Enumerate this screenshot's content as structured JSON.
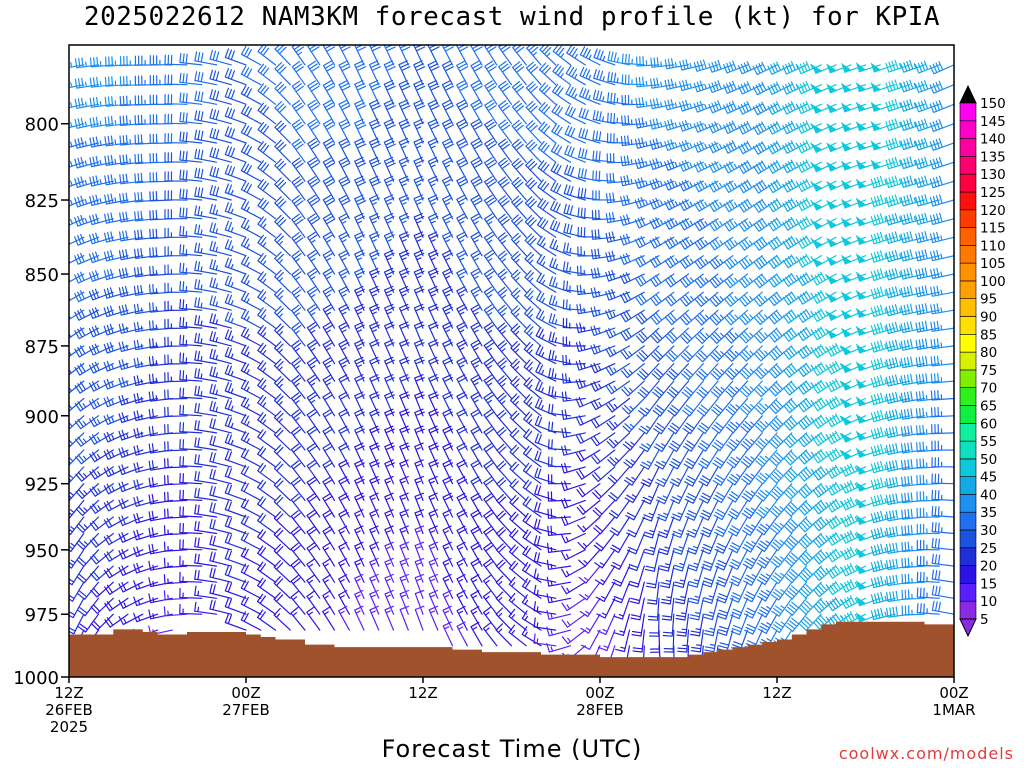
{
  "chart_data": {
    "type": "wind-barb-profile",
    "title": "2025022612 NAM3KM forecast wind profile (kt) for KPIA",
    "xlabel": "Forecast Time (UTC)",
    "ylabel": "",
    "credit": "coolwx.com/models",
    "y_axis": {
      "unit": "hPa",
      "scale": "log",
      "range": [
        1000,
        775
      ],
      "ticks": [
        800,
        825,
        850,
        875,
        900,
        925,
        950,
        975,
        1000
      ]
    },
    "x_axis": {
      "unit": "forecast hour",
      "range": [
        0,
        60
      ],
      "ticks": [
        {
          "hour": 0,
          "lines": [
            "12Z",
            "26FEB",
            "2025"
          ]
        },
        {
          "hour": 12,
          "lines": [
            "00Z",
            "27FEB"
          ]
        },
        {
          "hour": 24,
          "lines": [
            "12Z"
          ]
        },
        {
          "hour": 36,
          "lines": [
            "00Z",
            "28FEB"
          ]
        },
        {
          "hour": 48,
          "lines": [
            "12Z"
          ]
        },
        {
          "hour": 60,
          "lines": [
            "00Z",
            "1MAR"
          ]
        }
      ]
    },
    "colorbar": {
      "unit": "kt",
      "levels": [
        5,
        10,
        15,
        20,
        25,
        30,
        35,
        40,
        45,
        50,
        55,
        60,
        65,
        70,
        75,
        80,
        85,
        90,
        95,
        100,
        105,
        110,
        115,
        120,
        125,
        130,
        135,
        140,
        145,
        150
      ],
      "colors": [
        "#8a2be2",
        "#5a1fff",
        "#2c14e6",
        "#2030d8",
        "#1c54e0",
        "#1e70f0",
        "#1e90f0",
        "#14a8e6",
        "#10c8dc",
        "#10e0c0",
        "#10f0a0",
        "#10f040",
        "#30f020",
        "#80f000",
        "#d8f000",
        "#ffff00",
        "#ffe000",
        "#ffc000",
        "#ffa000",
        "#ff9000",
        "#ff7800",
        "#ff6000",
        "#ff3c00",
        "#ff1010",
        "#ff0040",
        "#ff0070",
        "#ff00a0",
        "#ff00c8",
        "#ff00f0",
        "#e000ff"
      ],
      "over_color": "#000000",
      "under_color": "#8a2be2"
    },
    "surface": {
      "color": "#a0522d",
      "hours": [
        0,
        2,
        3,
        4,
        5,
        6,
        8,
        10,
        11,
        12,
        13,
        14,
        16,
        18,
        20,
        22,
        24,
        26,
        28,
        30,
        32,
        34,
        36,
        38,
        40,
        42,
        43,
        44,
        45,
        46,
        47,
        48,
        49,
        50,
        51,
        52,
        53,
        54,
        56,
        58,
        60
      ],
      "pressure_hpa": [
        983,
        983,
        981,
        981,
        982,
        983,
        982,
        982,
        982,
        983,
        984,
        985,
        987,
        988,
        988,
        988,
        988,
        989,
        990,
        990,
        991,
        991,
        992,
        992,
        992,
        991,
        990,
        989,
        988,
        987,
        986,
        985,
        983,
        981,
        979,
        978,
        978,
        978,
        978,
        979,
        980
      ]
    },
    "barbs": {
      "time_step_hours": 1,
      "pressure_step_hpa": 6.25,
      "top_pressure_hpa": 781.25,
      "keyframes": [
        {
          "hour": 0,
          "low": {
            "dir": 190,
            "spd": 20
          },
          "high": {
            "dir": 260,
            "spd": 37
          }
        },
        {
          "hour": 4,
          "low": {
            "dir": 230,
            "spd": 15
          },
          "high": {
            "dir": 268,
            "spd": 38
          }
        },
        {
          "hour": 8,
          "low": {
            "dir": 265,
            "spd": 12
          },
          "high": {
            "dir": 272,
            "spd": 33
          }
        },
        {
          "hour": 12,
          "low": {
            "dir": 290,
            "spd": 18
          },
          "high": {
            "dir": 290,
            "spd": 30
          }
        },
        {
          "hour": 16,
          "low": {
            "dir": 320,
            "spd": 15
          },
          "high": {
            "dir": 325,
            "spd": 33
          }
        },
        {
          "hour": 20,
          "low": {
            "dir": 335,
            "spd": 12
          },
          "high": {
            "dir": 335,
            "spd": 33
          }
        },
        {
          "hour": 24,
          "low": {
            "dir": 340,
            "spd": 10
          },
          "high": {
            "dir": 335,
            "spd": 30
          }
        },
        {
          "hour": 28,
          "low": {
            "dir": 330,
            "spd": 15
          },
          "high": {
            "dir": 330,
            "spd": 32
          }
        },
        {
          "hour": 32,
          "low": {
            "dir": 300,
            "spd": 15
          },
          "high": {
            "dir": 320,
            "spd": 33
          }
        },
        {
          "hour": 36,
          "low": {
            "dir": 200,
            "spd": 10
          },
          "high": {
            "dir": 300,
            "spd": 35
          }
        },
        {
          "hour": 40,
          "low": {
            "dir": 170,
            "spd": 18
          },
          "high": {
            "dir": 270,
            "spd": 37
          }
        },
        {
          "hour": 44,
          "low": {
            "dir": 185,
            "spd": 25
          },
          "high": {
            "dir": 255,
            "spd": 38
          }
        },
        {
          "hour": 48,
          "low": {
            "dir": 205,
            "spd": 33
          },
          "high": {
            "dir": 245,
            "spd": 40
          }
        },
        {
          "hour": 52,
          "low": {
            "dir": 225,
            "spd": 42
          },
          "high": {
            "dir": 248,
            "spd": 50
          }
        },
        {
          "hour": 55,
          "low": {
            "dir": 250,
            "spd": 48
          },
          "high": {
            "dir": 252,
            "spd": 50
          }
        },
        {
          "hour": 58,
          "low": {
            "dir": 270,
            "spd": 35
          },
          "high": {
            "dir": 250,
            "spd": 45
          }
        },
        {
          "hour": 60,
          "low": {
            "dir": 285,
            "spd": 30
          },
          "high": {
            "dir": 245,
            "spd": 40
          }
        }
      ]
    }
  }
}
